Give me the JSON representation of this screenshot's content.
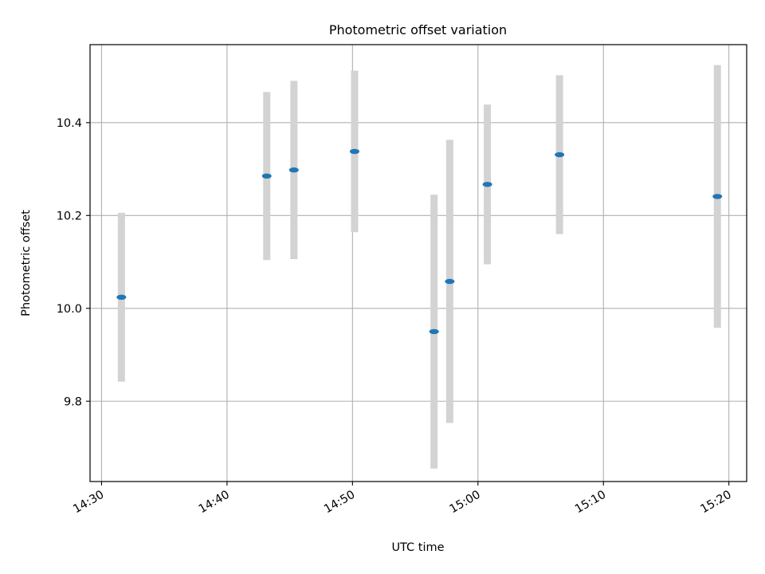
{
  "chart_data": {
    "type": "scatter",
    "title": "Photometric offset variation",
    "xlabel": "UTC time",
    "ylabel": "Photometric offset",
    "xlim": [
      "14:29:05",
      "15:21:25"
    ],
    "ylim": [
      9.627,
      10.568
    ],
    "x_ticks": [
      "14:30",
      "14:40",
      "14:50",
      "15:00",
      "15:10",
      "15:20"
    ],
    "y_ticks": [
      9.8,
      10.0,
      10.2,
      10.4
    ],
    "grid": true,
    "colors": {
      "point": "#1f77b4",
      "errorbar": "#d3d3d3",
      "grid": "#b0b0b0"
    },
    "points": [
      {
        "x": "14:31:35",
        "y": 10.024,
        "yerr": 0.182
      },
      {
        "x": "14:43:10",
        "y": 10.285,
        "yerr": 0.181
      },
      {
        "x": "14:45:20",
        "y": 10.298,
        "yerr": 0.192
      },
      {
        "x": "14:50:10",
        "y": 10.338,
        "yerr": 0.174
      },
      {
        "x": "14:56:30",
        "y": 9.95,
        "yerr": 0.295
      },
      {
        "x": "14:57:45",
        "y": 10.058,
        "yerr": 0.305
      },
      {
        "x": "15:00:45",
        "y": 10.267,
        "yerr": 0.172
      },
      {
        "x": "15:06:30",
        "y": 10.331,
        "yerr": 0.171
      },
      {
        "x": "15:19:05",
        "y": 10.241,
        "yerr": 0.283
      }
    ]
  }
}
